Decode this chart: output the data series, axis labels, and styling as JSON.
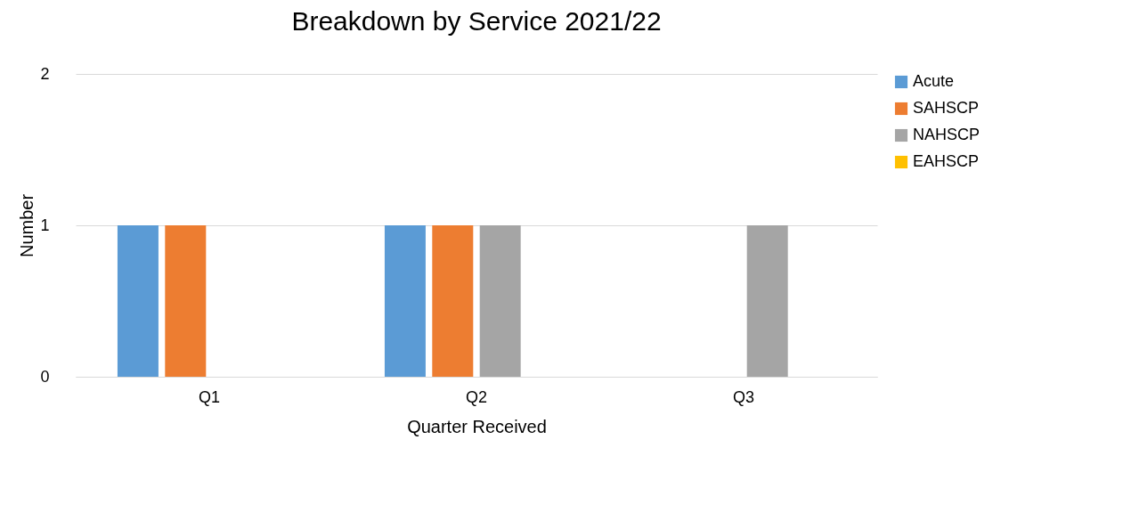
{
  "chart_data": {
    "type": "bar",
    "title": "Breakdown by Service 2021/22",
    "xlabel": "Quarter Received",
    "ylabel": "Number",
    "categories": [
      "Q1",
      "Q2",
      "Q3"
    ],
    "series": [
      {
        "name": "Acute",
        "color": "#5b9bd5",
        "values": [
          1,
          1,
          0
        ]
      },
      {
        "name": "SAHSCP",
        "color": "#ed7d31",
        "values": [
          1,
          1,
          0
        ]
      },
      {
        "name": "NAHSCP",
        "color": "#a5a5a5",
        "values": [
          0,
          1,
          1
        ]
      },
      {
        "name": "EAHSCP",
        "color": "#ffc000",
        "values": [
          0,
          0,
          0
        ]
      }
    ],
    "ylim": [
      0,
      2
    ],
    "yticks": [
      0,
      1,
      2
    ],
    "grid": "y",
    "legend": "right"
  }
}
